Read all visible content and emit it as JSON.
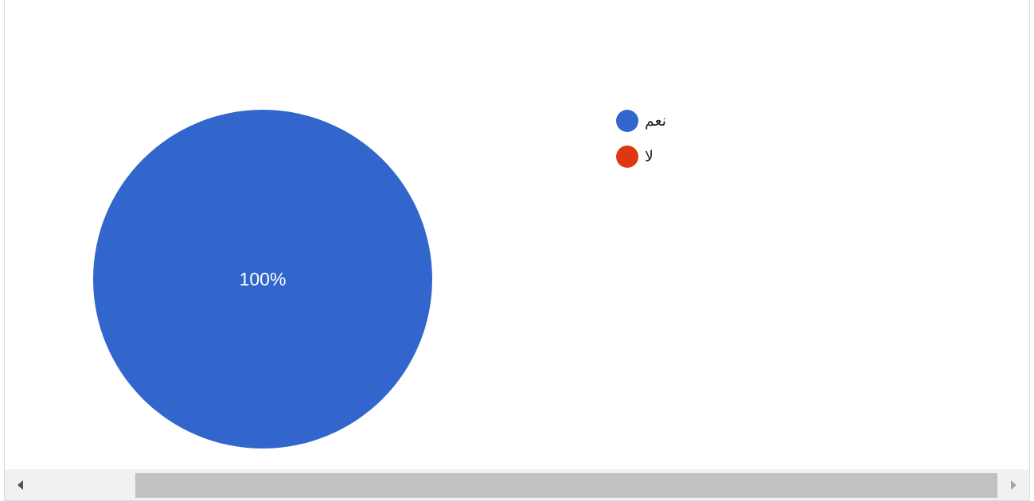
{
  "chart_data": {
    "type": "pie",
    "slices": [
      {
        "label": "نعم",
        "value": 100,
        "color": "#3366cc"
      },
      {
        "label": "لا",
        "value": 0,
        "color": "#dc3912"
      }
    ],
    "data_labels": [
      "100%"
    ],
    "legend_position": "right"
  },
  "legend": {
    "items": [
      {
        "label": "نعم",
        "color": "#3366cc"
      },
      {
        "label": "لا",
        "color": "#dc3912"
      }
    ]
  },
  "scrollbar": {
    "left_arrow": "◀",
    "right_arrow": "▶",
    "arrow_left_icon": "arrow-left-icon",
    "arrow_right_icon": "arrow-right-icon"
  }
}
